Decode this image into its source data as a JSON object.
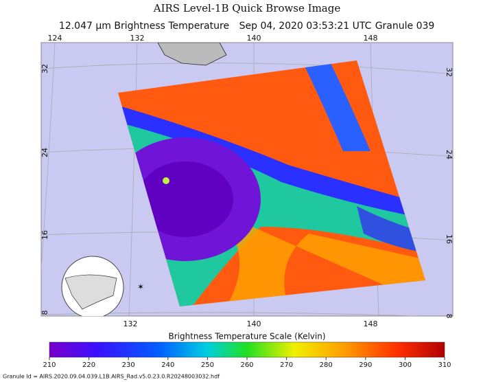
{
  "header": {
    "title": "AIRS Level-1B Quick Browse Image",
    "channel": "12.047 μm Brightness Temperature",
    "datetime": "Sep 04, 2020 03:53:21 UTC",
    "granule": "Granule 039"
  },
  "map": {
    "top_lon_labels": [
      124,
      132,
      140,
      148
    ],
    "left_lat_labels": [
      32,
      24,
      16,
      8
    ],
    "right_lat_labels": [
      32,
      24,
      16,
      8
    ],
    "bottom_lon_labels": [
      132,
      140,
      148
    ]
  },
  "color_scale": {
    "title": "Brightness Temperature Scale (Kelvin)",
    "range": [
      210,
      310
    ],
    "ticks": [
      210,
      220,
      230,
      240,
      250,
      260,
      270,
      280,
      290,
      300,
      310
    ]
  },
  "footer": "Granule Id = AIRS.2020.09.04.039.L1B.AIRS_Rad.v5.0.23.0.R20248003032.hdf"
}
